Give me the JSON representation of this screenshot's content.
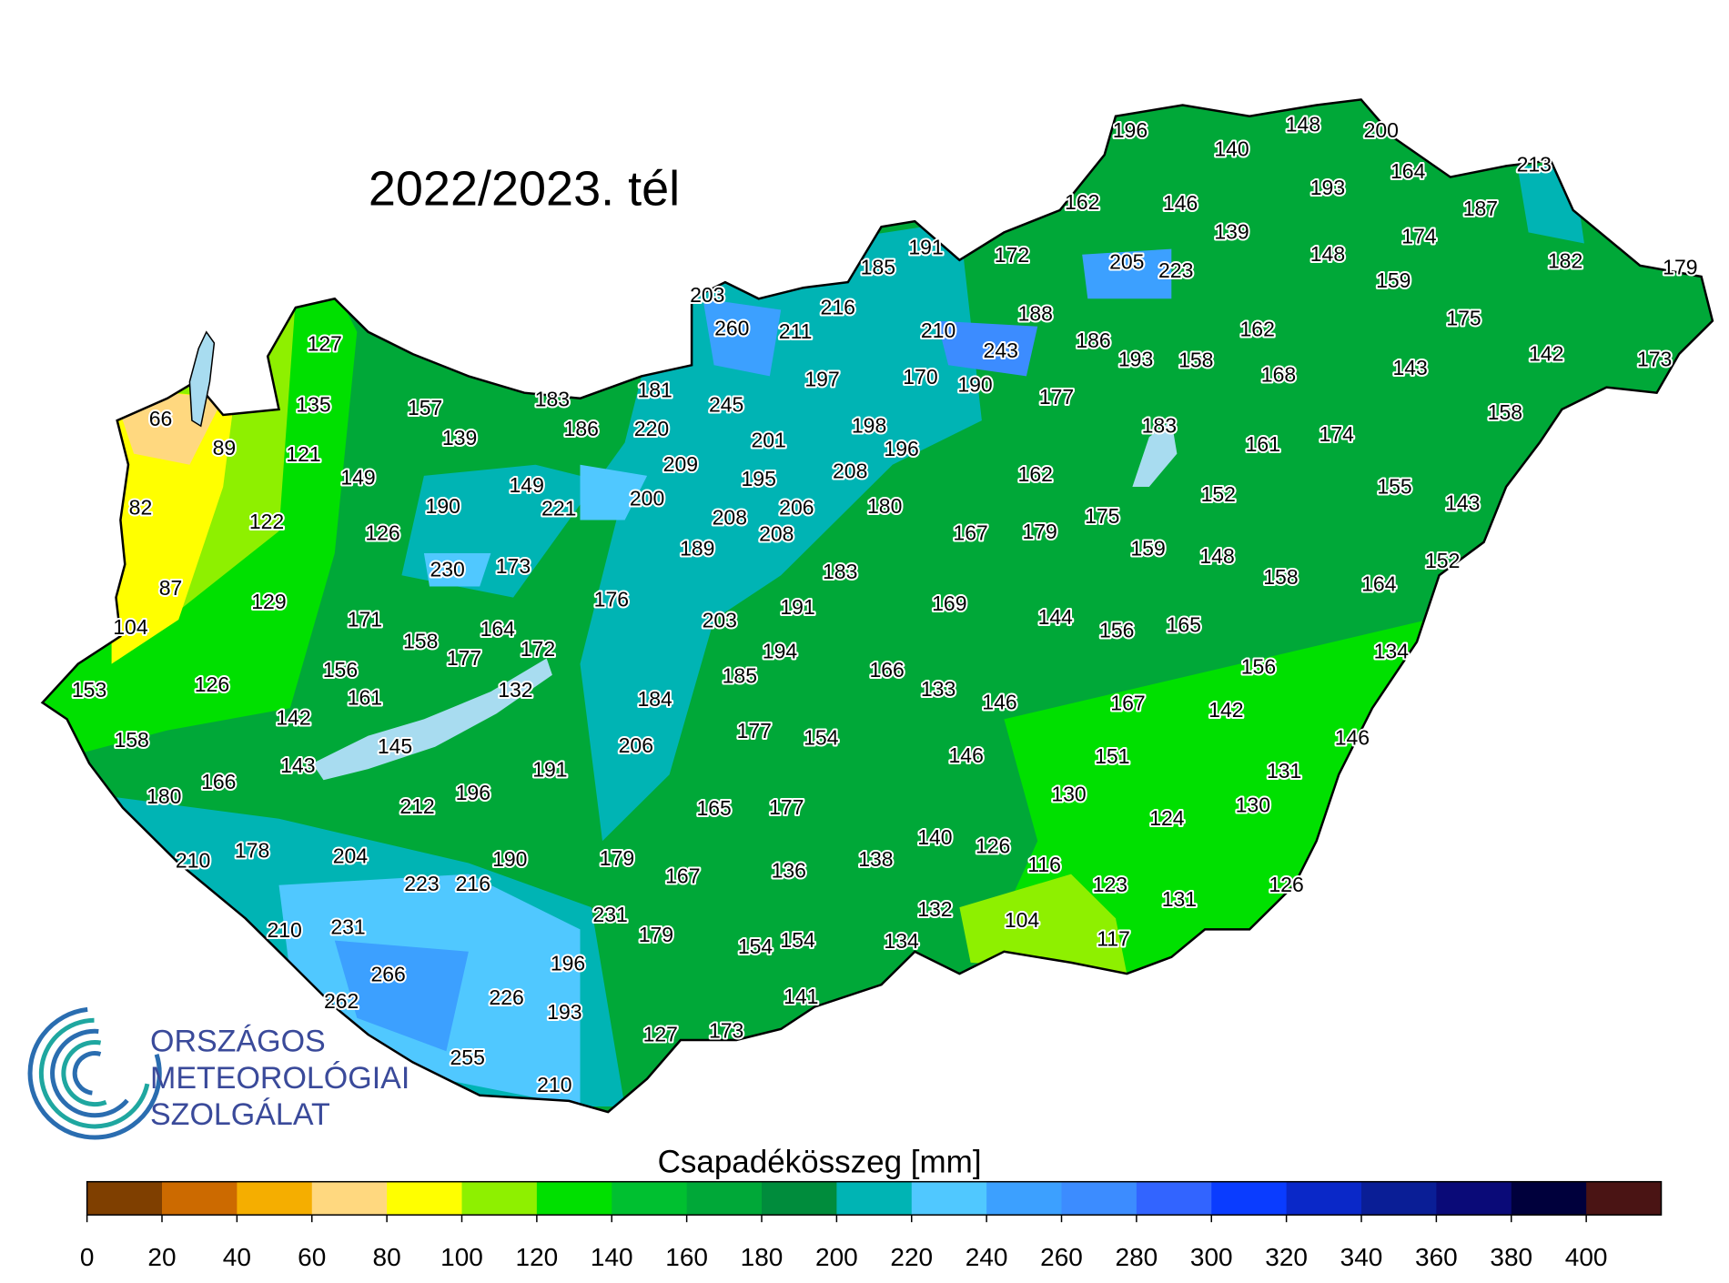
{
  "title": "2022/2023. tél",
  "stations": [
    196,
    140,
    148,
    200,
    164,
    213,
    193,
    162,
    146,
    187,
    139,
    174,
    191,
    172,
    148,
    205,
    223,
    185,
    182,
    179,
    203,
    216,
    159,
    188,
    260,
    211,
    210,
    175,
    162,
    186,
    243,
    193,
    158,
    142,
    173,
    143,
    127,
    168,
    170,
    190,
    197,
    181,
    183,
    245,
    177,
    135,
    157,
    158,
    66,
    186,
    220,
    198,
    183,
    174,
    89,
    139,
    201,
    196,
    161,
    121,
    209,
    208,
    162,
    149,
    149,
    195,
    155,
    152,
    143,
    200,
    221,
    206,
    180,
    190,
    82,
    122,
    208,
    175,
    126,
    208,
    167,
    179,
    189,
    159,
    148,
    230,
    173,
    183,
    158,
    152,
    164,
    87,
    129,
    176,
    191,
    169,
    203,
    144,
    156,
    165,
    171,
    104,
    164,
    158,
    172,
    177,
    194,
    134,
    156,
    166,
    185,
    156,
    126,
    153,
    132,
    133,
    161,
    184,
    146,
    167,
    142,
    142,
    146,
    177,
    154,
    158,
    206,
    145,
    146,
    151,
    143,
    191,
    131,
    166,
    196,
    130,
    180,
    212,
    165,
    177,
    124,
    130,
    140,
    126,
    178,
    204,
    190,
    179,
    210,
    116,
    136,
    138,
    123,
    167,
    223,
    216,
    131,
    126,
    132,
    231,
    104,
    210,
    231,
    179,
    117,
    154,
    154,
    134,
    196,
    266,
    226,
    141,
    262,
    193,
    127,
    173,
    255,
    210
  ],
  "legend": {
    "title": "Csapadékösszeg [mm]",
    "range": [
      0,
      420
    ],
    "ticks": [
      0,
      20,
      40,
      60,
      80,
      100,
      120,
      140,
      160,
      180,
      200,
      220,
      240,
      260,
      280,
      300,
      320,
      340,
      360,
      380,
      400
    ],
    "colors": [
      "#7f3f00",
      "#cc6a00",
      "#f5ae00",
      "#ffd87f",
      "#ffff00",
      "#8ef000",
      "#00e000",
      "#00c030",
      "#00a838",
      "#008c3c",
      "#00b4b4",
      "#50c8ff",
      "#3ca0ff",
      "#3c8cff",
      "#3264ff",
      "#0a3cff",
      "#0a28c8",
      "#0a1e96",
      "#0a0a78",
      "#00003c",
      "#4a1414"
    ]
  },
  "logo": {
    "lines": [
      "ORSZÁGOS",
      "METEOROLÓGIAI",
      "SZOLGÁLAT"
    ]
  }
}
